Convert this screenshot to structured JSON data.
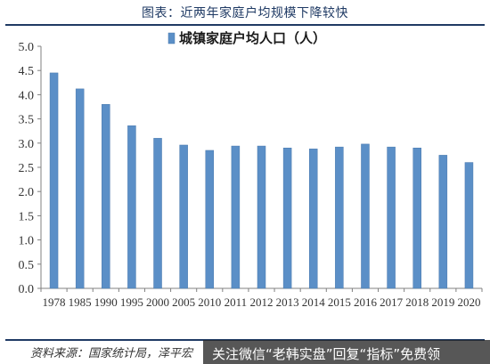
{
  "header": {
    "title": "图表：近两年家庭户均规模下降较快"
  },
  "footer": {
    "source": "资料来源：国家统计局，泽平宏"
  },
  "watermark": {
    "text": "关注微信“老韩实盘”回复“指标”免费领"
  },
  "colors": {
    "bar": "#5b8fc7",
    "bar_edge": "#4a79ad",
    "header": "#1f3a64",
    "axis": "#808080"
  },
  "chart_data": {
    "type": "bar",
    "title": "",
    "xlabel": "",
    "ylabel": "",
    "ylim": [
      0,
      5.0
    ],
    "yticks": [
      "0.0",
      "0.5",
      "1.0",
      "1.5",
      "2.0",
      "2.5",
      "3.0",
      "3.5",
      "4.0",
      "4.5",
      "5.0"
    ],
    "grid": false,
    "legend_position": "top-center",
    "categories": [
      "1978",
      "1985",
      "1990",
      "1995",
      "2000",
      "2005",
      "2010",
      "2011",
      "2012",
      "2013",
      "2014",
      "2015",
      "2016",
      "2017",
      "2018",
      "2019",
      "2020"
    ],
    "series": [
      {
        "name": "城镇家庭户均人口（人）",
        "values": [
          4.45,
          4.12,
          3.8,
          3.36,
          3.1,
          2.96,
          2.85,
          2.94,
          2.94,
          2.9,
          2.88,
          2.92,
          2.98,
          2.92,
          2.9,
          2.75,
          2.6
        ]
      }
    ]
  }
}
